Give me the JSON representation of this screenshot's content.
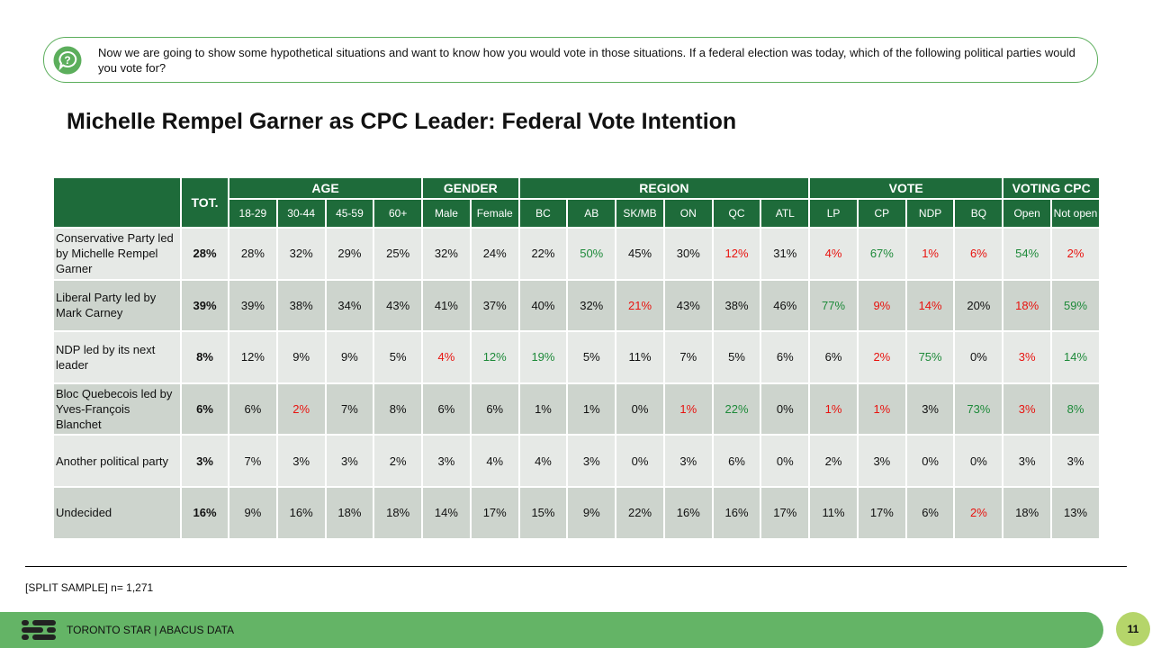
{
  "question": "Now we are going to show some hypothetical situations and want to know how you would vote in those situations. If a federal election was today, which of the following political parties would you vote for?",
  "title": "Michelle Rempel Garner as CPC Leader: Federal Vote Intention",
  "table": {
    "total_header": "TOT.",
    "groups": [
      {
        "label": "AGE",
        "columns": [
          "18-29",
          "30-44",
          "45-59",
          "60+"
        ]
      },
      {
        "label": "GENDER",
        "columns": [
          "Male",
          "Female"
        ]
      },
      {
        "label": "REGION",
        "columns": [
          "BC",
          "AB",
          "SK/MB",
          "ON",
          "QC",
          "ATL"
        ]
      },
      {
        "label": "VOTE",
        "columns": [
          "LP",
          "CP",
          "NDP",
          "BQ"
        ]
      },
      {
        "label": "VOTING CPC",
        "columns": [
          "Open",
          "Not open"
        ]
      }
    ],
    "rows": [
      {
        "label": "Conservative Party led by Michelle Rempel Garner",
        "total": "28%",
        "cells": [
          "28%",
          "32%",
          "29%",
          "25%",
          "32%",
          "24%",
          "22%",
          "50%",
          "45%",
          "30%",
          "12%",
          "31%",
          "4%",
          "67%",
          "1%",
          "6%",
          "54%",
          "2%"
        ],
        "colors": [
          null,
          null,
          null,
          null,
          null,
          null,
          null,
          "#1e8a3a",
          null,
          null,
          "#e8130f",
          null,
          "#e8130f",
          "#1e8a3a",
          "#e8130f",
          "#e8130f",
          "#1e8a3a",
          "#e8130f"
        ]
      },
      {
        "label": "Liberal Party led by Mark Carney",
        "total": "39%",
        "cells": [
          "39%",
          "38%",
          "34%",
          "43%",
          "41%",
          "37%",
          "40%",
          "32%",
          "21%",
          "43%",
          "38%",
          "46%",
          "77%",
          "9%",
          "14%",
          "20%",
          "18%",
          "59%"
        ],
        "colors": [
          null,
          null,
          null,
          null,
          null,
          null,
          null,
          null,
          "#e8130f",
          null,
          null,
          null,
          "#1e8a3a",
          "#e8130f",
          "#e8130f",
          null,
          "#e8130f",
          "#1e8a3a"
        ]
      },
      {
        "label": "NDP led by its next leader",
        "total": "8%",
        "cells": [
          "12%",
          "9%",
          "9%",
          "5%",
          "4%",
          "12%",
          "19%",
          "5%",
          "11%",
          "7%",
          "5%",
          "6%",
          "6%",
          "2%",
          "75%",
          "0%",
          "3%",
          "14%"
        ],
        "colors": [
          null,
          null,
          null,
          null,
          "#e8130f",
          "#1e8a3a",
          "#1e8a3a",
          null,
          null,
          null,
          null,
          null,
          null,
          "#e8130f",
          "#1e8a3a",
          null,
          "#e8130f",
          "#1e8a3a"
        ]
      },
      {
        "label": "Bloc Quebecois led by Yves-François Blanchet",
        "total": "6%",
        "cells": [
          "6%",
          "2%",
          "7%",
          "8%",
          "6%",
          "6%",
          "1%",
          "1%",
          "0%",
          "1%",
          "22%",
          "0%",
          "1%",
          "1%",
          "3%",
          "73%",
          "3%",
          "8%"
        ],
        "colors": [
          null,
          "#e8130f",
          null,
          null,
          null,
          null,
          null,
          null,
          null,
          "#e8130f",
          "#1e8a3a",
          null,
          "#e8130f",
          "#e8130f",
          null,
          "#1e8a3a",
          "#e8130f",
          "#1e8a3a"
        ]
      },
      {
        "label": "Another political party",
        "total": "3%",
        "cells": [
          "7%",
          "3%",
          "3%",
          "2%",
          "3%",
          "4%",
          "4%",
          "3%",
          "0%",
          "3%",
          "6%",
          "0%",
          "2%",
          "3%",
          "0%",
          "0%",
          "3%",
          "3%"
        ],
        "colors": [
          null,
          null,
          null,
          null,
          null,
          null,
          null,
          null,
          null,
          null,
          null,
          null,
          null,
          null,
          null,
          null,
          null,
          null
        ]
      },
      {
        "label": "Undecided",
        "total": "16%",
        "cells": [
          "9%",
          "16%",
          "18%",
          "18%",
          "14%",
          "17%",
          "15%",
          "9%",
          "22%",
          "16%",
          "16%",
          "17%",
          "11%",
          "17%",
          "6%",
          "2%",
          "18%",
          "13%"
        ],
        "colors": [
          null,
          null,
          null,
          null,
          null,
          null,
          null,
          null,
          null,
          null,
          null,
          null,
          null,
          null,
          null,
          "#e8130f",
          null,
          null
        ]
      }
    ]
  },
  "footer": {
    "note": "[SPLIT SAMPLE] n= 1,271",
    "brand": "TORONTO STAR | ABACUS DATA",
    "page": "11"
  }
}
